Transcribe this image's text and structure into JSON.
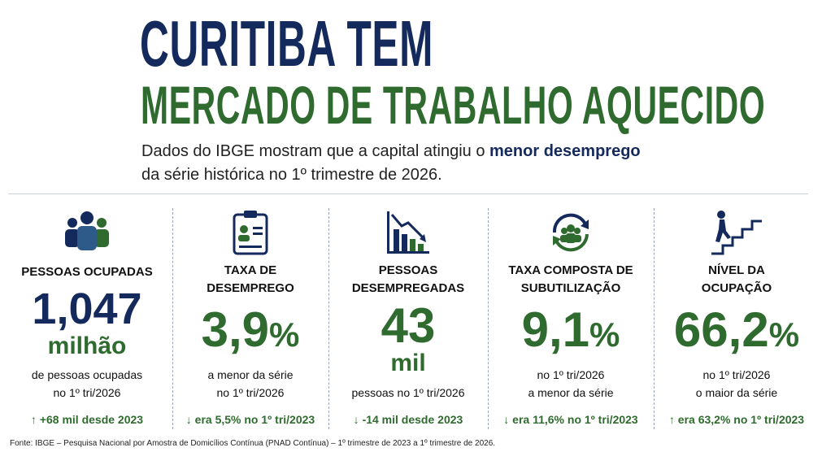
{
  "title": {
    "line1": "CURITIBA TEM",
    "line2": "MERCADO DE TRABALHO AQUECIDO"
  },
  "subtitle": {
    "part1": "Dados do IBGE  mostram que a capital  atingiu o ",
    "bold": "menor desemprego",
    "part2": "da série histórica no 1º trimestre de 2026."
  },
  "stats": [
    {
      "label": "PESSOAS OCUPADAS",
      "value": "1,047",
      "unit": "milhão",
      "desc1": "de pessoas ocupadas",
      "desc2": "no 1º tri/2026",
      "foot": "+68 mil desde 2023",
      "arrow": "↑",
      "icon": "people-icon"
    },
    {
      "label1": "TAXA DE",
      "label2": "DESEMPREGO",
      "value": "3,9",
      "unit": "%",
      "desc1": "a menor da série",
      "desc2": "no 1º tri/2026",
      "foot": "era 5,5% no 1º tri/2023",
      "arrow": "↓",
      "icon": "clipboard-icon"
    },
    {
      "label1": "PESSOAS",
      "label2": "DESEMPREGADAS",
      "value": "43",
      "unit": "mil",
      "desc1": "pessoas no 1º tri/2026",
      "foot": "-14 mil desde 2023",
      "arrow": "↓",
      "icon": "declining-chart-icon"
    },
    {
      "label1": "TAXA COMPOSTA DE",
      "label2": "SUBUTILIZAÇÃO",
      "value": "9,1",
      "unit": "%",
      "desc1": "no 1º tri/2026",
      "desc2": "a menor da série",
      "foot": "era 11,6% no 1º tri/2023",
      "arrow": "↓",
      "icon": "cycle-people-icon"
    },
    {
      "label1": "NÍVEL DA",
      "label2": "OCUPAÇÃO",
      "value": "66,2",
      "unit": "%",
      "desc1": "no 1º tri/2026",
      "desc2": "o maior da série",
      "foot": "era 63,2% no 1º tri/2023",
      "arrow": "↑",
      "icon": "stairs-climb-icon"
    }
  ],
  "source": "Fonte: IBGE – Pesquisa Nacional por Amostra de Domicílios Contínua (PNAD Contínua) – 1º trimestre de 2023 a 1º trimestre de 2026.",
  "colors": {
    "navy": "#142a5c",
    "green": "#2f6b2f"
  }
}
